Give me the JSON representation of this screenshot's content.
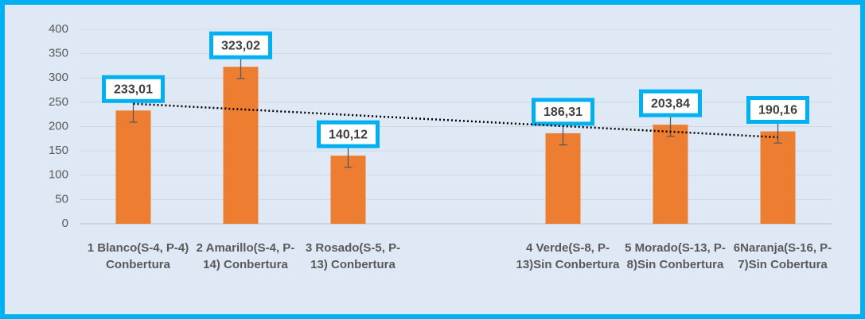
{
  "chart_data": {
    "type": "bar",
    "categories": [
      "1 Blanco(S-4, P-4) Conbertura",
      "2 Amarillo(S-4, P-14) Conbertura",
      "3 Rosado(S-5, P-13) Conbertura",
      null,
      "4 Verde(S-8, P-13)Sin Conbertura",
      "5 Morado(S-13, P-8)Sin Conbertura",
      "6Naranja(S-16, P-7)Sin Cobertura"
    ],
    "values": [
      233.01,
      323.02,
      140.12,
      null,
      186.31,
      203.84,
      190.16
    ],
    "value_labels": [
      "233,01",
      "323,02",
      "140,12",
      null,
      "186,31",
      "203,84",
      "190,16"
    ],
    "errors": [
      24,
      24,
      24,
      null,
      24,
      24,
      24
    ],
    "color": "#ed7d31",
    "trendline": [
      247,
      178
    ],
    "ylim": [
      0,
      400
    ],
    "yticks": [
      0,
      50,
      100,
      150,
      200,
      250,
      300,
      350,
      400
    ],
    "grid": true
  }
}
